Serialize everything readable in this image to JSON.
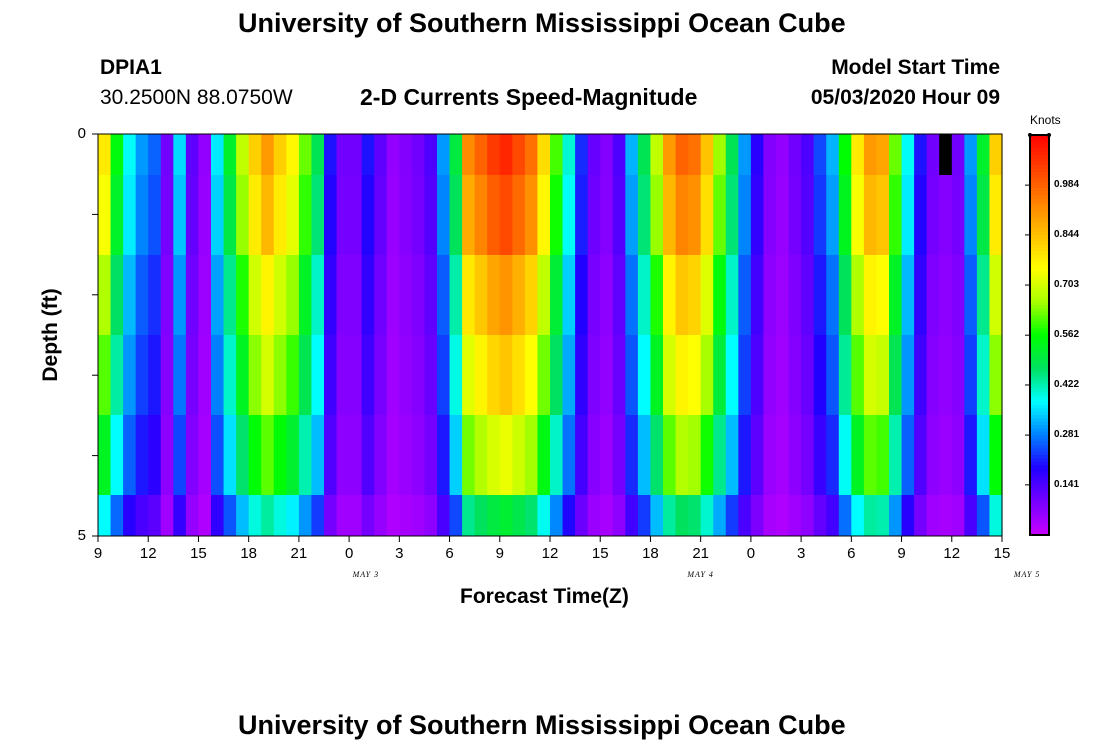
{
  "page": {
    "top_title": "University of Southern Mississippi Ocean Cube",
    "bottom_title": "University of Southern Mississippi Ocean Cube",
    "station_id": "DPIA1",
    "station_coords": "30.2500N 88.0750W",
    "plot_title": "2-D Currents Speed-Magnitude",
    "model_start_label": "Model Start Time",
    "model_start_value": "05/03/2020 Hour 09"
  },
  "colors": {
    "palette": [
      "#c800ff",
      "#7700ff",
      "#2200ff",
      "#0080ff",
      "#00ffff",
      "#00e060",
      "#00ff00",
      "#aaff00",
      "#ffff00",
      "#ffc000",
      "#ff8000",
      "#ff4000",
      "#ff0000"
    ],
    "missing": "#000000"
  },
  "chart_data": {
    "type": "heatmap",
    "xlabel": "Forecast Time(Z)",
    "ylabel": "Depth (ft)",
    "x_tick_labels": [
      "9",
      "12",
      "15",
      "18",
      "21",
      "0",
      "3",
      "6",
      "9",
      "12",
      "15",
      "18",
      "21",
      "0",
      "3",
      "6",
      "9",
      "12",
      "15"
    ],
    "date_labels": [
      {
        "text": "MAY 3",
        "at_hour": 16
      },
      {
        "text": "MAY 4",
        "at_hour": 36
      },
      {
        "text": "MAY 5",
        "at_hour": 55.5
      }
    ],
    "x_range_hours": [
      0,
      54
    ],
    "y_tick_labels": [
      "0",
      "5"
    ],
    "ylim": [
      0,
      5
    ],
    "depth_levels": 5,
    "colorbar": {
      "title": "Knots",
      "range": [
        0.0,
        1.125
      ],
      "tick_labels": [
        "0.984",
        "0.844",
        "0.703",
        "0.562",
        "0.422",
        "0.281",
        "0.141"
      ],
      "tick_values": [
        0.984,
        0.844,
        0.703,
        0.562,
        0.422,
        0.281,
        0.141
      ]
    },
    "surface_speed_knots": [
      0.78,
      0.55,
      0.38,
      0.3,
      0.26,
      0.1,
      0.35,
      0.12,
      0.06,
      0.36,
      0.52,
      0.68,
      0.82,
      0.9,
      0.82,
      0.76,
      0.62,
      0.48,
      0.2,
      0.1,
      0.1,
      0.2,
      0.12,
      0.06,
      0.08,
      0.1,
      0.14,
      0.3,
      0.5,
      0.92,
      0.98,
      1.04,
      1.07,
      1.02,
      0.96,
      0.8,
      0.6,
      0.4,
      0.22,
      0.11,
      0.08,
      0.14,
      0.32,
      0.48,
      0.68,
      0.9,
      0.98,
      0.96,
      0.84,
      0.65,
      0.48,
      0.3,
      0.18,
      0.08,
      0.06,
      0.1,
      0.14,
      0.24,
      0.32,
      0.56,
      0.78,
      0.9,
      0.88,
      0.62,
      0.38,
      0.2,
      0.1,
      0.08,
      0.1,
      0.3,
      0.52,
      0.82
    ],
    "depth_factors": [
      1.0,
      0.95,
      0.85,
      0.78,
      0.68,
      0.48
    ],
    "missing_cell": {
      "hour": 50.25,
      "depth_level": 0
    }
  }
}
